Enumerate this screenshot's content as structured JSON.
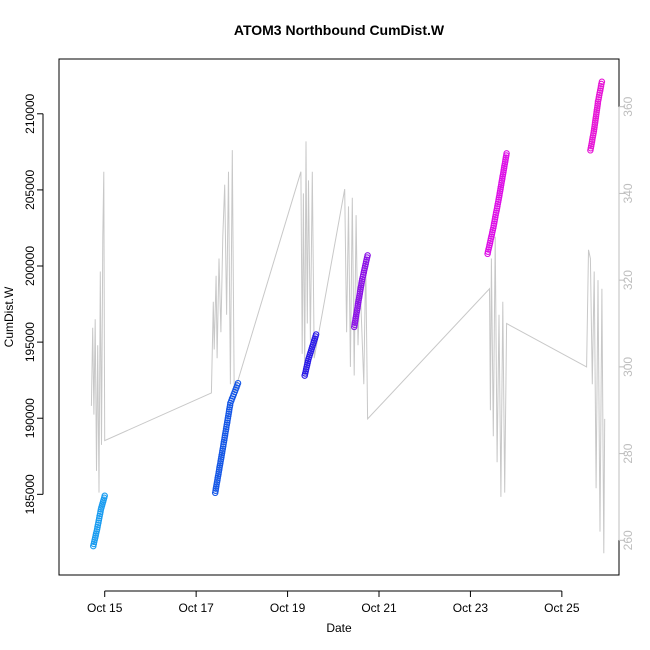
{
  "chart_data": {
    "type": "scatter",
    "title": "ATOM3 Northbound CumDist.W",
    "xlabel": "Date",
    "ylabel": "CumDist.W",
    "x_ticks": [
      "Oct 15",
      "Oct 17",
      "Oct 19",
      "Oct 21",
      "Oct 23",
      "Oct 25"
    ],
    "xlim": [
      "2024-10-14T00:00",
      "2024-10-26T06:00"
    ],
    "ylim": [
      179700,
      213600
    ],
    "y_ticks": [
      185000,
      190000,
      195000,
      200000,
      205000,
      210000
    ],
    "y2lim": [
      252,
      371
    ],
    "y2_ticks": [
      260,
      280,
      300,
      320,
      340,
      360
    ],
    "grid": false,
    "series": [
      {
        "color": "#1a9cf0",
        "points": [
          [
            "2024-10-14T18:00",
            181600
          ],
          [
            "2024-10-14T20:00",
            182700
          ],
          [
            "2024-10-14T22:00",
            184000
          ],
          [
            "2024-10-15T00:00",
            184900
          ]
        ]
      },
      {
        "color": "#1557e6",
        "points": [
          [
            "2024-10-17T10:00",
            185100
          ],
          [
            "2024-10-17T14:00",
            188000
          ],
          [
            "2024-10-17T18:00",
            191000
          ],
          [
            "2024-10-17T22:00",
            192300
          ]
        ]
      },
      {
        "color": "#2a1ae6",
        "points": [
          [
            "2024-10-19T09:00",
            192800
          ],
          [
            "2024-10-19T11:00",
            193900
          ],
          [
            "2024-10-19T13:00",
            194700
          ],
          [
            "2024-10-19T15:00",
            195500
          ]
        ]
      },
      {
        "color": "#8c14e6",
        "points": [
          [
            "2024-10-20T11:00",
            196000
          ],
          [
            "2024-10-20T13:00",
            197500
          ],
          [
            "2024-10-20T15:00",
            199000
          ],
          [
            "2024-10-20T18:00",
            200700
          ]
        ]
      },
      {
        "color": "#dd10e6",
        "points": [
          [
            "2024-10-23T09:00",
            200800
          ],
          [
            "2024-10-23T12:00",
            202500
          ],
          [
            "2024-10-23T15:00",
            204500
          ],
          [
            "2024-10-23T19:00",
            207400
          ]
        ]
      },
      {
        "color": "#e616d6",
        "points": [
          [
            "2024-10-25T15:00",
            207600
          ],
          [
            "2024-10-25T17:00",
            209000
          ],
          [
            "2024-10-25T19:00",
            210800
          ],
          [
            "2024-10-25T21:00",
            212100
          ]
        ]
      }
    ],
    "secondary_line": {
      "color": "#c8c8c8",
      "points": [
        [
          "2024-10-14T17:00",
          291
        ],
        [
          "2024-10-14T17:40",
          309
        ],
        [
          "2024-10-14T18:20",
          289
        ],
        [
          "2024-10-14T19:00",
          311
        ],
        [
          "2024-10-14T19:40",
          276
        ],
        [
          "2024-10-14T20:20",
          305
        ],
        [
          "2024-10-14T21:00",
          271
        ],
        [
          "2024-10-14T21:40",
          322
        ],
        [
          "2024-10-14T22:20",
          282
        ],
        [
          "2024-10-14T23:00",
          330
        ],
        [
          "2024-10-14T23:30",
          345
        ],
        [
          "2024-10-15T00:00",
          283
        ],
        [
          "2024-10-17T08:00",
          294
        ],
        [
          "2024-10-17T09:00",
          315
        ],
        [
          "2024-10-17T09:30",
          304
        ],
        [
          "2024-10-17T10:30",
          321
        ],
        [
          "2024-10-17T11:00",
          302
        ],
        [
          "2024-10-17T12:00",
          325
        ],
        [
          "2024-10-17T13:00",
          308
        ],
        [
          "2024-10-17T14:00",
          330
        ],
        [
          "2024-10-17T15:00",
          342
        ],
        [
          "2024-10-17T16:00",
          312
        ],
        [
          "2024-10-17T17:00",
          345
        ],
        [
          "2024-10-17T18:00",
          296
        ],
        [
          "2024-10-17T19:00",
          350
        ],
        [
          "2024-10-17T20:00",
          294
        ],
        [
          "2024-10-19T07:00",
          345
        ],
        [
          "2024-10-19T07:40",
          303
        ],
        [
          "2024-10-19T08:20",
          340
        ],
        [
          "2024-10-19T09:00",
          298
        ],
        [
          "2024-10-19T09:40",
          352
        ],
        [
          "2024-10-19T10:20",
          310
        ],
        [
          "2024-10-19T11:00",
          343
        ],
        [
          "2024-10-19T12:00",
          306
        ],
        [
          "2024-10-19T13:00",
          345
        ],
        [
          "2024-10-19T14:00",
          302
        ],
        [
          "2024-10-20T06:00",
          341
        ],
        [
          "2024-10-20T07:00",
          308
        ],
        [
          "2024-10-20T08:00",
          337
        ],
        [
          "2024-10-20T09:00",
          300
        ],
        [
          "2024-10-20T10:00",
          339
        ],
        [
          "2024-10-20T11:00",
          298
        ],
        [
          "2024-10-20T12:00",
          335
        ],
        [
          "2024-10-20T13:00",
          305
        ],
        [
          "2024-10-20T14:00",
          320
        ],
        [
          "2024-10-20T16:00",
          296
        ],
        [
          "2024-10-20T17:00",
          325
        ],
        [
          "2024-10-20T18:00",
          288
        ],
        [
          "2024-10-23T10:00",
          318
        ],
        [
          "2024-10-23T10:30",
          290
        ],
        [
          "2024-10-23T11:00",
          325
        ],
        [
          "2024-10-23T12:00",
          284
        ],
        [
          "2024-10-23T13:00",
          330
        ],
        [
          "2024-10-23T14:00",
          278
        ],
        [
          "2024-10-23T15:00",
          312
        ],
        [
          "2024-10-23T16:00",
          270
        ],
        [
          "2024-10-23T17:00",
          315
        ],
        [
          "2024-10-23T18:00",
          271
        ],
        [
          "2024-10-23T19:00",
          310
        ],
        [
          "2024-10-25T13:00",
          300
        ],
        [
          "2024-10-25T14:00",
          327
        ],
        [
          "2024-10-25T15:00",
          325
        ],
        [
          "2024-10-25T16:00",
          296
        ],
        [
          "2024-10-25T17:00",
          322
        ],
        [
          "2024-10-25T18:00",
          272
        ],
        [
          "2024-10-25T19:00",
          320
        ],
        [
          "2024-10-25T20:00",
          262
        ],
        [
          "2024-10-25T21:00",
          318
        ],
        [
          "2024-10-25T22:00",
          257
        ],
        [
          "2024-10-25T22:30",
          288
        ]
      ]
    }
  }
}
